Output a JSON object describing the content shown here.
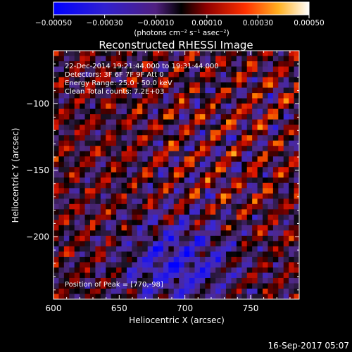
{
  "chart_data": {
    "type": "heatmap",
    "title": "Reconstructed RHESSI Image",
    "xlabel": "Heliocentric X (arcsec)",
    "ylabel": "Heliocentric Y (arcsec)",
    "xlim": [
      600,
      787
    ],
    "ylim": [
      -247,
      -60
    ],
    "x_ticks": [
      600,
      650,
      700,
      750
    ],
    "y_ticks": [
      -100,
      -150,
      -200
    ],
    "x_tick_labels": [
      "600",
      "650",
      "700",
      "750"
    ],
    "y_tick_labels": [
      "−100",
      "−150",
      "−200"
    ],
    "colorbar": {
      "min": -0.0005,
      "max": 0.0005,
      "ticks": [
        -0.0005,
        -0.0003,
        -0.0001,
        0.0001,
        0.0003,
        0.0005
      ],
      "tick_labels": [
        "−0.00050",
        "−0.00030",
        "−0.00010",
        "0.00010",
        "0.00030",
        "0.00050"
      ],
      "unit_label": "(photons cm⁻² s⁻¹ asec⁻²)"
    },
    "annotations": [
      "22-Dec-2014 19:21:44.000 to 19:31:44.000",
      "Detectors: 3F 6F 7F 9F  Att 0",
      "Energy Range: 25.0 - 50.0 keV",
      "Clean    Total counts: 7.2E+03"
    ],
    "peak_label": "Position of Peak = [770,-98]",
    "peak_position": [
      770,
      -98
    ],
    "grid_size": [
      47,
      47
    ],
    "pattern": "diagonal fringes running from upper-left to lower-right, strongest near top-right and centre, negative values concentrated lower-centre"
  },
  "footer": {
    "timestamp": "16-Sep-2017 05:07"
  },
  "colors": {
    "background": "#000000",
    "text": "#ffffff",
    "colormap": [
      "#0000ff",
      "#3020c0",
      "#603090",
      "#202020",
      "#000000",
      "#800000",
      "#e00000",
      "#ff8000",
      "#ffd040",
      "#ffffff"
    ]
  }
}
